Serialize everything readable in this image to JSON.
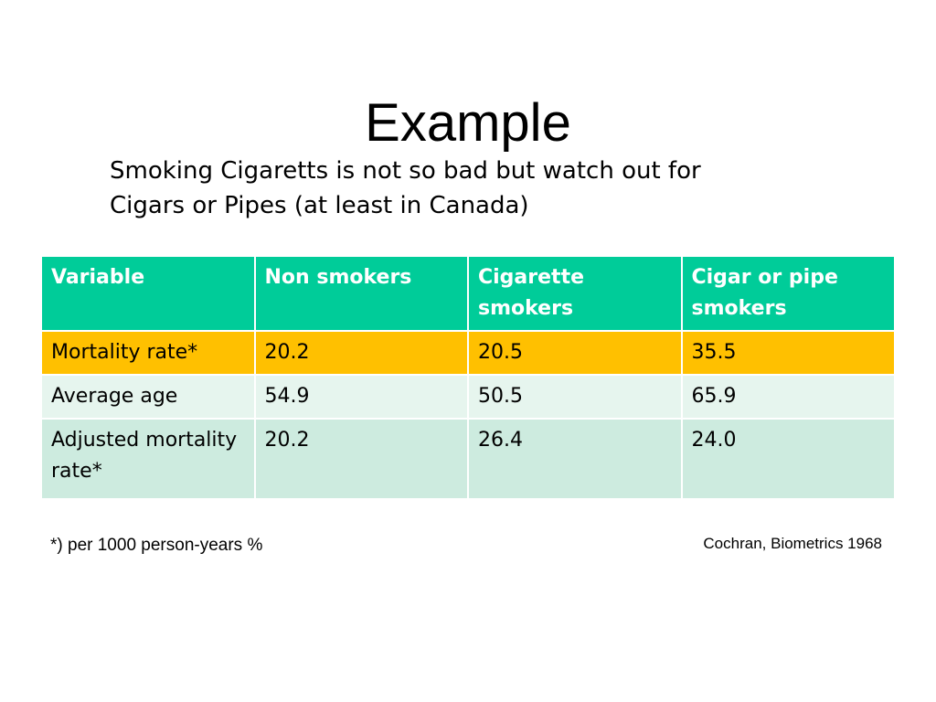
{
  "slide": {
    "title": "Example",
    "subtitle_lines": [
      "Smoking Cigaretts is not so bad but watch out for",
      "Cigars or Pipes (at least in Canada)"
    ]
  },
  "table": {
    "headers": [
      "Variable",
      "Non smokers",
      "Cigarette smokers",
      "Cigar or pipe smokers"
    ],
    "rows": [
      [
        "Mortality rate*",
        "20.2",
        "20.5",
        "35.5"
      ],
      [
        "Average age",
        "54.9",
        "50.5",
        "65.9"
      ],
      [
        "Adjusted mortality rate*",
        "20.2",
        "26.4",
        "24.0"
      ]
    ]
  },
  "footnote": "*) per 1000 person-years %",
  "source": "Cochran, Biometrics 1968",
  "colors": {
    "header_bg": "#00cc99",
    "highlight_row_bg": "#ffc000",
    "light_row_bg": "#e6f5ee",
    "mid_row_bg": "#cdebdf"
  }
}
